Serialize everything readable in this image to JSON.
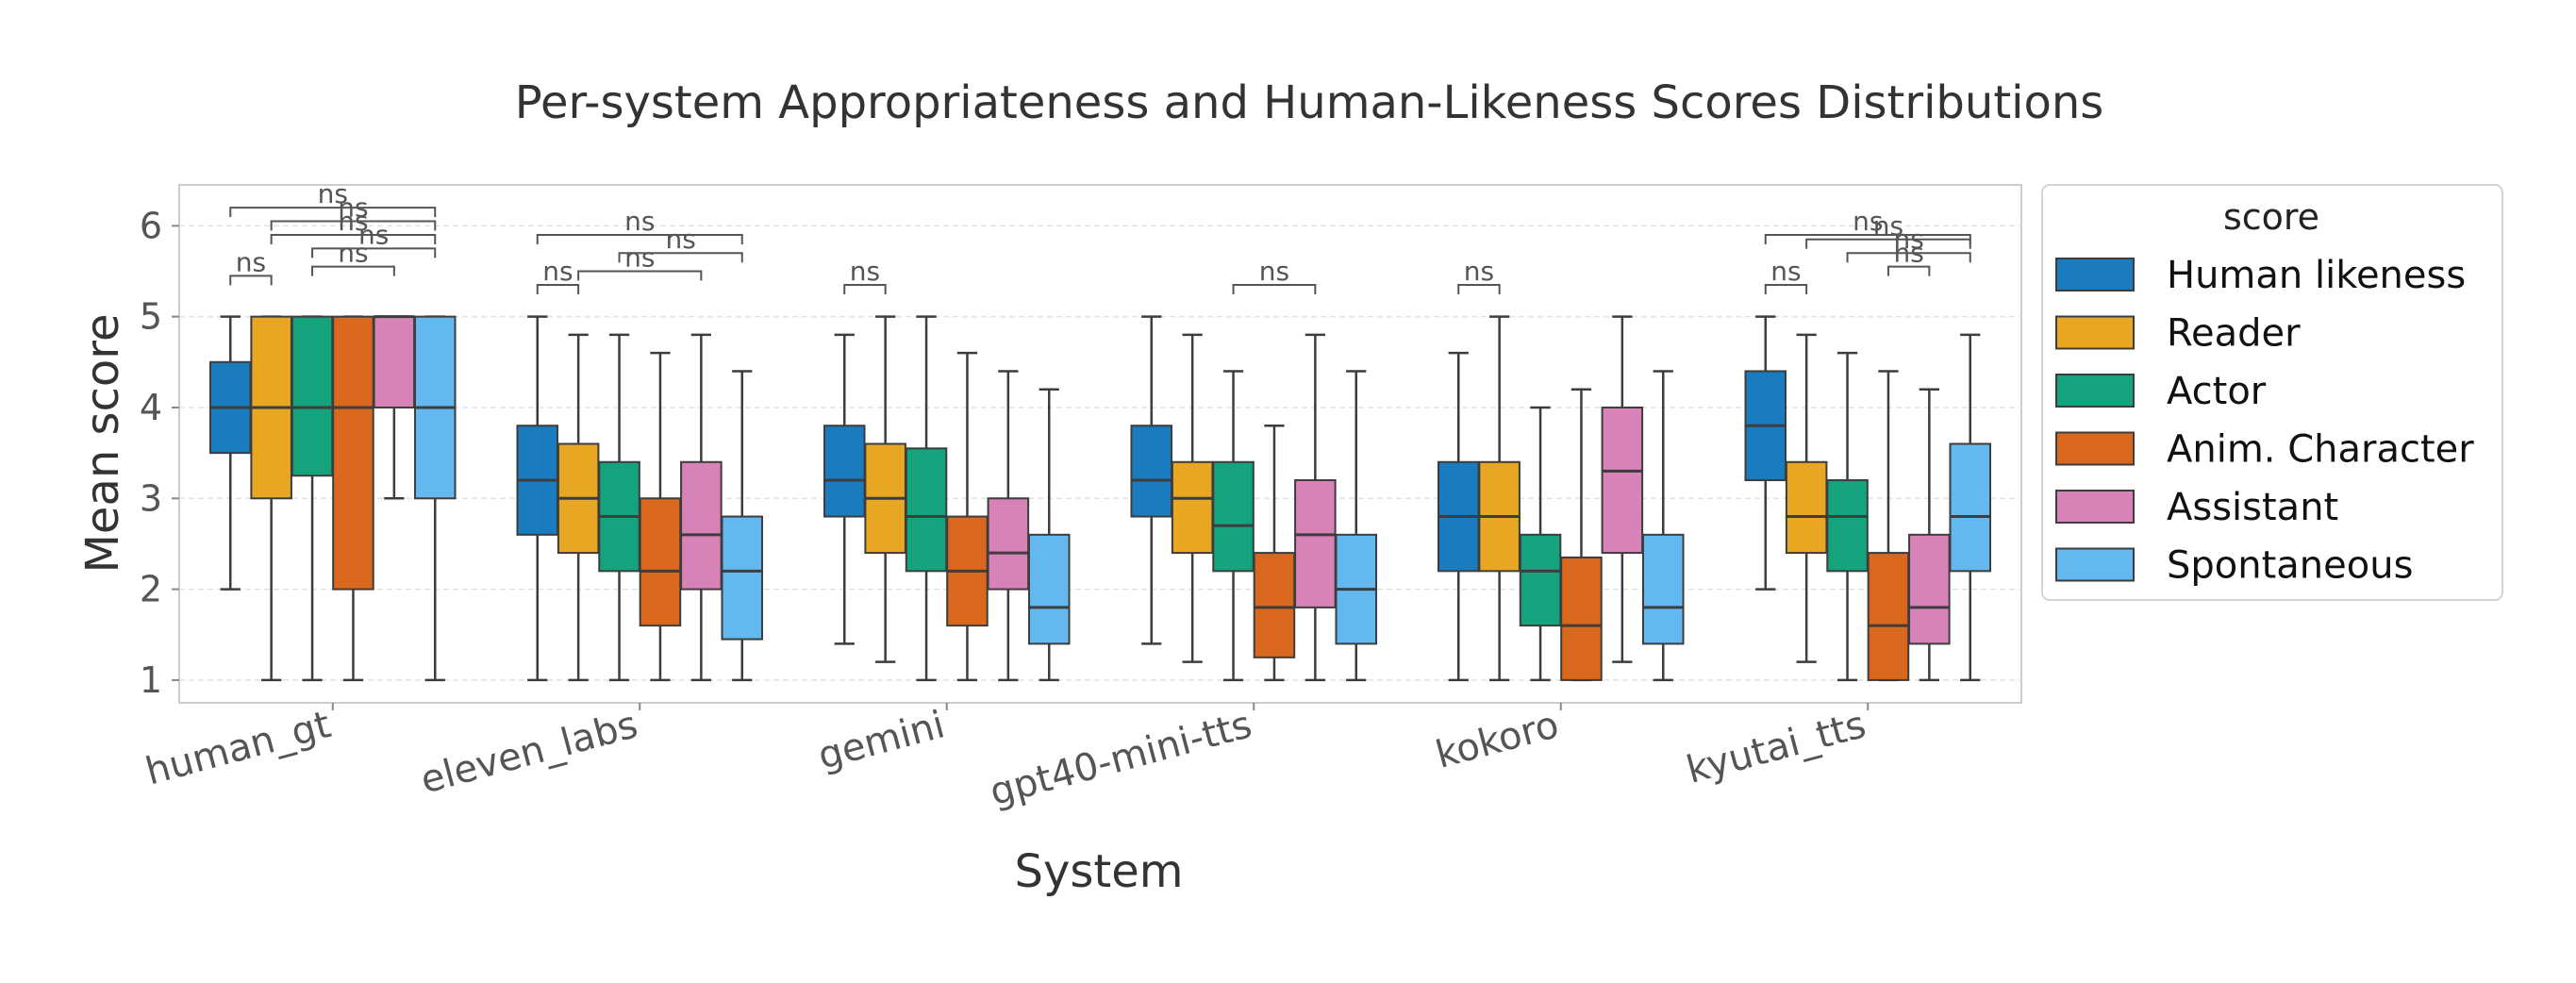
{
  "chart_data": {
    "type": "box",
    "title": "Per-system Appropriateness and Human-Likeness Scores Distributions",
    "xlabel": "System",
    "ylabel": "Mean score",
    "ylim": [
      0.75,
      6.45
    ],
    "yticks": [
      1,
      2,
      3,
      4,
      5,
      6
    ],
    "grid": true,
    "legend": {
      "title": "score",
      "placement": "outside-right"
    },
    "categories": [
      "human_gt",
      "eleven_labs",
      "gemini",
      "gpt40-mini-tts",
      "kokoro",
      "kyutai_tts"
    ],
    "series": [
      {
        "name": "Human likeness",
        "color": "#1a7bbf",
        "stats": [
          {
            "whislo": 2.0,
            "q1": 3.5,
            "med": 4.0,
            "q3": 4.5,
            "whishi": 5.0
          },
          {
            "whislo": 1.0,
            "q1": 2.6,
            "med": 3.2,
            "q3": 3.8,
            "whishi": 5.0
          },
          {
            "whislo": 1.4,
            "q1": 2.8,
            "med": 3.2,
            "q3": 3.8,
            "whishi": 4.8
          },
          {
            "whislo": 1.4,
            "q1": 2.8,
            "med": 3.2,
            "q3": 3.8,
            "whishi": 5.0
          },
          {
            "whislo": 1.0,
            "q1": 2.2,
            "med": 2.8,
            "q3": 3.4,
            "whishi": 4.6
          },
          {
            "whislo": 2.0,
            "q1": 3.2,
            "med": 3.8,
            "q3": 4.4,
            "whishi": 5.0
          }
        ]
      },
      {
        "name": "Reader",
        "color": "#e8a722",
        "stats": [
          {
            "whislo": 1.0,
            "q1": 3.0,
            "med": 4.0,
            "q3": 5.0,
            "whishi": 5.0
          },
          {
            "whislo": 1.0,
            "q1": 2.4,
            "med": 3.0,
            "q3": 3.6,
            "whishi": 4.8
          },
          {
            "whislo": 1.2,
            "q1": 2.4,
            "med": 3.0,
            "q3": 3.6,
            "whishi": 5.0
          },
          {
            "whislo": 1.2,
            "q1": 2.4,
            "med": 3.0,
            "q3": 3.4,
            "whishi": 4.8
          },
          {
            "whislo": 1.0,
            "q1": 2.2,
            "med": 2.8,
            "q3": 3.4,
            "whishi": 5.0
          },
          {
            "whislo": 1.2,
            "q1": 2.4,
            "med": 2.8,
            "q3": 3.4,
            "whishi": 4.8
          }
        ]
      },
      {
        "name": "Actor",
        "color": "#14a37c",
        "stats": [
          {
            "whislo": 1.0,
            "q1": 3.25,
            "med": 4.0,
            "q3": 5.0,
            "whishi": 5.0
          },
          {
            "whislo": 1.0,
            "q1": 2.2,
            "med": 2.8,
            "q3": 3.4,
            "whishi": 4.8
          },
          {
            "whislo": 1.0,
            "q1": 2.2,
            "med": 2.8,
            "q3": 3.55,
            "whishi": 5.0
          },
          {
            "whislo": 1.0,
            "q1": 2.2,
            "med": 2.7,
            "q3": 3.4,
            "whishi": 4.4
          },
          {
            "whislo": 1.0,
            "q1": 1.6,
            "med": 2.2,
            "q3": 2.6,
            "whishi": 4.0
          },
          {
            "whislo": 1.0,
            "q1": 2.2,
            "med": 2.8,
            "q3": 3.2,
            "whishi": 4.6
          }
        ]
      },
      {
        "name": "Anim. Character",
        "color": "#d9681e",
        "stats": [
          {
            "whislo": 1.0,
            "q1": 2.0,
            "med": 4.0,
            "q3": 5.0,
            "whishi": 5.0
          },
          {
            "whislo": 1.0,
            "q1": 1.6,
            "med": 2.2,
            "q3": 3.0,
            "whishi": 4.6
          },
          {
            "whislo": 1.0,
            "q1": 1.6,
            "med": 2.2,
            "q3": 2.8,
            "whishi": 4.6
          },
          {
            "whislo": 1.0,
            "q1": 1.25,
            "med": 1.8,
            "q3": 2.4,
            "whishi": 3.8
          },
          {
            "whislo": 1.0,
            "q1": 1.0,
            "med": 1.6,
            "q3": 2.35,
            "whishi": 4.2
          },
          {
            "whislo": 1.0,
            "q1": 1.0,
            "med": 1.6,
            "q3": 2.4,
            "whishi": 4.4
          }
        ]
      },
      {
        "name": "Assistant",
        "color": "#d883b8",
        "stats": [
          {
            "whislo": 3.0,
            "q1": 4.0,
            "med": 5.0,
            "q3": 5.0,
            "whishi": 5.0
          },
          {
            "whislo": 1.0,
            "q1": 2.0,
            "med": 2.6,
            "q3": 3.4,
            "whishi": 4.8
          },
          {
            "whislo": 1.0,
            "q1": 2.0,
            "med": 2.4,
            "q3": 3.0,
            "whishi": 4.4
          },
          {
            "whislo": 1.0,
            "q1": 1.8,
            "med": 2.6,
            "q3": 3.2,
            "whishi": 4.8
          },
          {
            "whislo": 1.2,
            "q1": 2.4,
            "med": 3.3,
            "q3": 4.0,
            "whishi": 5.0
          },
          {
            "whislo": 1.0,
            "q1": 1.4,
            "med": 1.8,
            "q3": 2.6,
            "whishi": 4.2
          }
        ]
      },
      {
        "name": "Spontaneous",
        "color": "#63b8ef",
        "stats": [
          {
            "whislo": 1.0,
            "q1": 3.0,
            "med": 4.0,
            "q3": 5.0,
            "whishi": 5.0
          },
          {
            "whislo": 1.0,
            "q1": 1.45,
            "med": 2.2,
            "q3": 2.8,
            "whishi": 4.4
          },
          {
            "whislo": 1.0,
            "q1": 1.4,
            "med": 1.8,
            "q3": 2.6,
            "whishi": 4.2
          },
          {
            "whislo": 1.0,
            "q1": 1.4,
            "med": 2.0,
            "q3": 2.6,
            "whishi": 4.4
          },
          {
            "whislo": 1.0,
            "q1": 1.4,
            "med": 1.8,
            "q3": 2.6,
            "whishi": 4.4
          },
          {
            "whislo": 1.0,
            "q1": 2.2,
            "med": 2.8,
            "q3": 3.6,
            "whishi": 4.8
          }
        ]
      }
    ],
    "significance": [
      {
        "category": "human_gt",
        "from": 0,
        "to": 1,
        "y": 5.45,
        "label": "ns"
      },
      {
        "category": "human_gt",
        "from": 2,
        "to": 5,
        "y": 5.75,
        "label": "ns"
      },
      {
        "category": "human_gt",
        "from": 1,
        "to": 5,
        "y": 5.9,
        "label": "ns"
      },
      {
        "category": "human_gt",
        "from": 2,
        "to": 4,
        "y": 5.55,
        "label": "ns"
      },
      {
        "category": "human_gt",
        "from": 0,
        "to": 5,
        "y": 6.2,
        "label": "ns"
      },
      {
        "category": "human_gt",
        "from": 1,
        "to": 5,
        "y": 6.05,
        "label": "ns"
      },
      {
        "category": "eleven_labs",
        "from": 0,
        "to": 1,
        "y": 5.35,
        "label": "ns"
      },
      {
        "category": "eleven_labs",
        "from": 1,
        "to": 4,
        "y": 5.5,
        "label": "ns"
      },
      {
        "category": "eleven_labs",
        "from": 2,
        "to": 5,
        "y": 5.7,
        "label": "ns"
      },
      {
        "category": "eleven_labs",
        "from": 0,
        "to": 5,
        "y": 5.9,
        "label": "ns"
      },
      {
        "category": "gemini",
        "from": 0,
        "to": 1,
        "y": 5.35,
        "label": "ns"
      },
      {
        "category": "gpt40-mini-tts",
        "from": 2,
        "to": 4,
        "y": 5.35,
        "label": "ns"
      },
      {
        "category": "kokoro",
        "from": 0,
        "to": 1,
        "y": 5.35,
        "label": "ns"
      },
      {
        "category": "kyutai_tts",
        "from": 0,
        "to": 1,
        "y": 5.35,
        "label": "ns"
      },
      {
        "category": "kyutai_tts",
        "from": 3,
        "to": 4,
        "y": 5.55,
        "label": "ns"
      },
      {
        "category": "kyutai_tts",
        "from": 2,
        "to": 5,
        "y": 5.7,
        "label": "ns"
      },
      {
        "category": "kyutai_tts",
        "from": 1,
        "to": 5,
        "y": 5.85,
        "label": "ns"
      },
      {
        "category": "kyutai_tts",
        "from": 0,
        "to": 5,
        "y": 5.9,
        "label": "ns"
      }
    ]
  }
}
